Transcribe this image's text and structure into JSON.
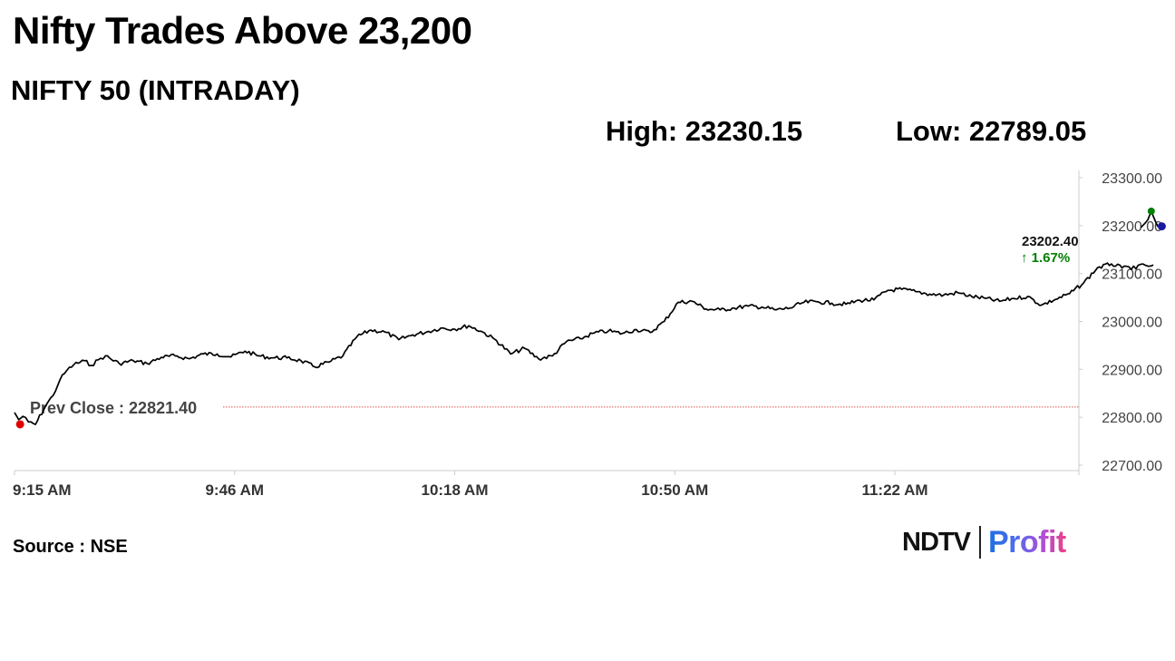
{
  "header": {
    "title": "Nifty Trades Above 23,200",
    "subtitle": "NIFTY 50 (INTRADAY)"
  },
  "stats": {
    "high": "High: 23230.15",
    "low": "Low: 22789.05"
  },
  "footer": {
    "source": "Source : NSE",
    "logo_ndtv": "NDTV",
    "logo_profit": "Profit"
  },
  "colors": {
    "line": "#000000",
    "prev_close_line": "#e05050",
    "positive": "#008000",
    "start_dot": "#e00000",
    "high_dot": "#008000",
    "last_dot": "#1a1aa0",
    "axis": "#cccccc"
  },
  "chart_data": {
    "type": "line",
    "x_ticks": [
      "9:15 AM",
      "9:46 AM",
      "10:18 AM",
      "10:50 AM",
      "11:22 AM"
    ],
    "y_ticks": [
      "23300.00",
      "23200.00",
      "23100.00",
      "23000.00",
      "22900.00",
      "22800.00",
      "22700.00"
    ],
    "ylim": [
      22700,
      23300
    ],
    "prev_close": {
      "label": "Prev Close : 22821.40",
      "value": 22821.4
    },
    "last": {
      "label": "23202.40",
      "change": "↑ 1.67%",
      "value": 23202.4
    },
    "high_value": 23230.15,
    "low_value": 22789.05,
    "series": [
      {
        "x_minutes": [
          0,
          0.6,
          1.2,
          2,
          3,
          4.5,
          5.5,
          6.5,
          7.5,
          8.5,
          10,
          11,
          12,
          13,
          15,
          17,
          19,
          21,
          23,
          25,
          27,
          29,
          31,
          33,
          35,
          37,
          39,
          41,
          43,
          45,
          47,
          49,
          51,
          53,
          55,
          57,
          59,
          61,
          63,
          65,
          67,
          69,
          71,
          73,
          75,
          77,
          79,
          81,
          83,
          85,
          87,
          89,
          91,
          93,
          95,
          97,
          99,
          101,
          103,
          105,
          107,
          109,
          111,
          113,
          115,
          117,
          119,
          121,
          123,
          125,
          127,
          129,
          131,
          133,
          135,
          137,
          139,
          141,
          143,
          145,
          147,
          149,
          151,
          153,
          155,
          157,
          158.5,
          159.5,
          160.5,
          161.5,
          162.3,
          163
        ],
        "values": [
          22810,
          22795,
          22802,
          22790,
          22785,
          22825,
          22845,
          22878,
          22898,
          22910,
          22918,
          22908,
          22920,
          22928,
          22912,
          22918,
          22912,
          22925,
          22928,
          22922,
          22932,
          22932,
          22926,
          22938,
          22928,
          22924,
          22924,
          22918,
          22905,
          22915,
          22928,
          22968,
          22982,
          22978,
          22962,
          22972,
          22978,
          22986,
          22984,
          22991,
          22978,
          22960,
          22932,
          22944,
          22922,
          22928,
          22958,
          22964,
          22976,
          22980,
          22975,
          22983,
          22977,
          23000,
          23040,
          23042,
          23026,
          23024,
          23028,
          23032,
          23030,
          23024,
          23028,
          23040,
          23041,
          23038,
          23036,
          23044,
          23045,
          23065,
          23067,
          23062,
          23057,
          23055,
          23060,
          23052,
          23048,
          23042,
          23048,
          23052,
          23034,
          23046,
          23058,
          23080,
          23112,
          23120,
          23112,
          23114,
          23110,
          23120,
          23115,
          23118
        ]
      },
      {
        "x_minutes": [
          161.2,
          161.8,
          162.2,
          162.7,
          163.2,
          163.6,
          164
        ],
        "values": [
          23196,
          23205,
          23212,
          23230,
          23212,
          23199,
          23202
        ]
      }
    ]
  }
}
